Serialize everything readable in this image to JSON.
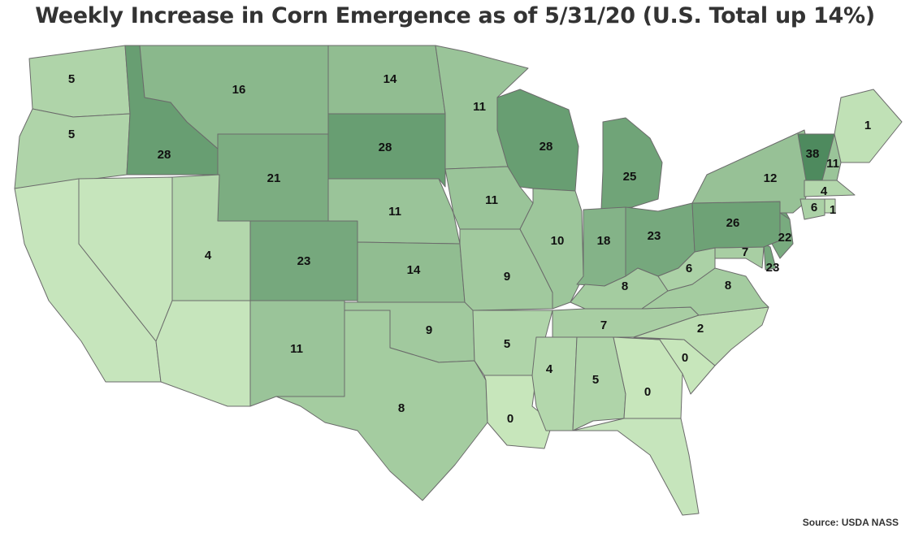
{
  "title": "Weekly Increase in Corn Emergence as of 5/31/20 (U.S. Total up 14%)",
  "source": "Source: USDA NASS",
  "chart_data": {
    "type": "choropleth",
    "metric": "Weekly increase in corn emergence (percentage points)",
    "color_scale": {
      "low": "#c7e6bb",
      "high": "#4e8a5e"
    },
    "states": [
      {
        "state": "WA",
        "value": 5
      },
      {
        "state": "OR",
        "value": 5
      },
      {
        "state": "CA",
        "value": null
      },
      {
        "state": "NV",
        "value": null
      },
      {
        "state": "ID",
        "value": 28
      },
      {
        "state": "MT",
        "value": 16
      },
      {
        "state": "WY",
        "value": 21
      },
      {
        "state": "UT",
        "value": 4
      },
      {
        "state": "AZ",
        "value": null
      },
      {
        "state": "CO",
        "value": 23
      },
      {
        "state": "NM",
        "value": 11
      },
      {
        "state": "ND",
        "value": 14
      },
      {
        "state": "SD",
        "value": 28
      },
      {
        "state": "NE",
        "value": 11
      },
      {
        "state": "KS",
        "value": 14
      },
      {
        "state": "OK",
        "value": 9
      },
      {
        "state": "TX",
        "value": 8
      },
      {
        "state": "MN",
        "value": 11
      },
      {
        "state": "IA",
        "value": 11
      },
      {
        "state": "MO",
        "value": 9
      },
      {
        "state": "AR",
        "value": 5
      },
      {
        "state": "LA",
        "value": 0
      },
      {
        "state": "WI",
        "value": 28
      },
      {
        "state": "IL",
        "value": 10
      },
      {
        "state": "MI",
        "value": 25
      },
      {
        "state": "IN",
        "value": 18
      },
      {
        "state": "OH",
        "value": 23
      },
      {
        "state": "KY",
        "value": 8
      },
      {
        "state": "TN",
        "value": 7
      },
      {
        "state": "MS",
        "value": 4
      },
      {
        "state": "AL",
        "value": 5
      },
      {
        "state": "GA",
        "value": 0
      },
      {
        "state": "FL",
        "value": null
      },
      {
        "state": "SC",
        "value": 0
      },
      {
        "state": "NC",
        "value": 2
      },
      {
        "state": "VA",
        "value": 8
      },
      {
        "state": "WV",
        "value": 6
      },
      {
        "state": "MD",
        "value": 7
      },
      {
        "state": "DE",
        "value": 23
      },
      {
        "state": "PA",
        "value": 26
      },
      {
        "state": "NJ",
        "value": 22
      },
      {
        "state": "NY",
        "value": 12
      },
      {
        "state": "CT",
        "value": 6
      },
      {
        "state": "RI",
        "value": 1
      },
      {
        "state": "MA",
        "value": 4
      },
      {
        "state": "VT",
        "value": 38
      },
      {
        "state": "NH",
        "value": 11
      },
      {
        "state": "ME",
        "value": 1
      }
    ]
  }
}
